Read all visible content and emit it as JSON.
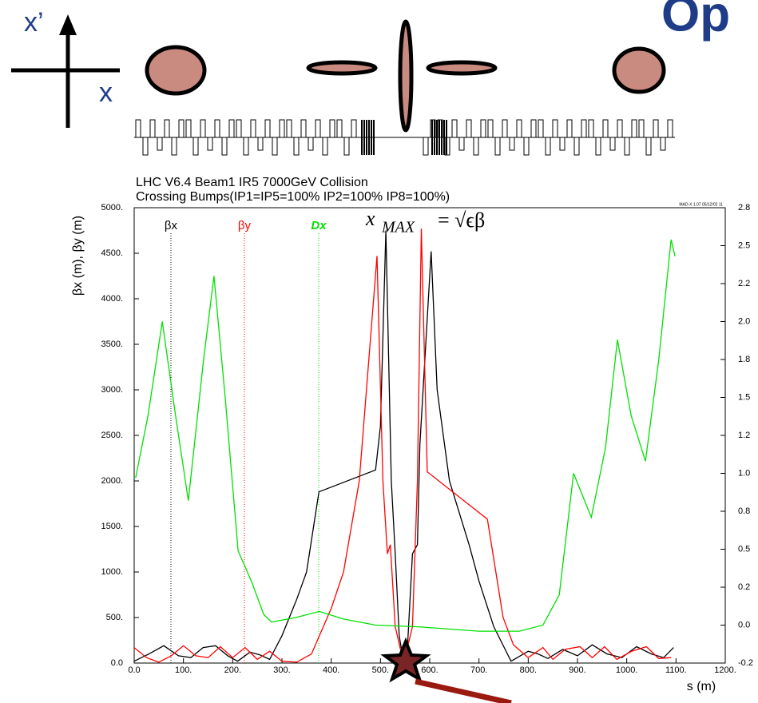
{
  "slide": {
    "heading": "Op",
    "axis_xp": "x’",
    "axis_x": "x"
  },
  "chart_data": {
    "type": "line",
    "title": "LHC V6.4 Beam1 IR5 7000GeV Collision",
    "subtitle": "Crossing Bumps(IP1=IP5=100% IP2=100% IP8=100%)",
    "stamp": "MAD-X 1.07  05/12/02 11",
    "formula": {
      "lhs": "x",
      "sub": "MAX",
      "rhs": "= √ϵβ"
    },
    "xlabel": "s (m)",
    "ylabel": "βx (m), βy (m)",
    "xlim": [
      0,
      1200
    ],
    "xticks": [
      {
        "value": 0,
        "label": "0.0"
      },
      {
        "value": 100,
        "label": "100."
      },
      {
        "value": 200,
        "label": "200."
      },
      {
        "value": 300,
        "label": "300."
      },
      {
        "value": 400,
        "label": "400."
      },
      {
        "value": 500,
        "label": "500."
      },
      {
        "value": 600,
        "label": "600."
      },
      {
        "value": 700,
        "label": "700."
      },
      {
        "value": 800,
        "label": "800."
      },
      {
        "value": 900,
        "label": "900."
      },
      {
        "value": 1000,
        "label": "1000."
      },
      {
        "value": 1100,
        "label": "1100."
      },
      {
        "value": 1200,
        "label": "1200."
      }
    ],
    "ylim": [
      0,
      5000
    ],
    "yticks": [
      {
        "value": 0,
        "label": "0.0"
      },
      {
        "value": 500,
        "label": "500."
      },
      {
        "value": 1000,
        "label": "1000."
      },
      {
        "value": 1500,
        "label": "1500."
      },
      {
        "value": 2000,
        "label": "2000."
      },
      {
        "value": 2500,
        "label": "2500."
      },
      {
        "value": 3000,
        "label": "3000."
      },
      {
        "value": 3500,
        "label": "3500."
      },
      {
        "value": 4000,
        "label": "4000."
      },
      {
        "value": 4500,
        "label": "4500."
      },
      {
        "value": 5000,
        "label": "5000."
      }
    ],
    "y2lim": [
      -0.25,
      2.75
    ],
    "y2ticks": [
      {
        "value": -0.25,
        "label": "-0.2"
      },
      {
        "value": 0,
        "label": "0.0"
      },
      {
        "value": 0.25,
        "label": "0.2"
      },
      {
        "value": 0.5,
        "label": "0.5"
      },
      {
        "value": 0.75,
        "label": "0.8"
      },
      {
        "value": 1,
        "label": "1.0"
      },
      {
        "value": 1.25,
        "label": "1.2"
      },
      {
        "value": 1.5,
        "label": "1.5"
      },
      {
        "value": 1.75,
        "label": "1.8"
      },
      {
        "value": 2,
        "label": "2.0"
      },
      {
        "value": 2.25,
        "label": "2.2"
      },
      {
        "value": 2.5,
        "label": "2.5"
      },
      {
        "value": 2.75,
        "label": "2.8"
      }
    ],
    "series": [
      {
        "name": "βx",
        "color": "#000000",
        "x": [
          0,
          30,
          60,
          90,
          115,
          140,
          165,
          190,
          210,
          235,
          255,
          275,
          300,
          330,
          350,
          375,
          490,
          500,
          511,
          522,
          530,
          538,
          547,
          555,
          565,
          575,
          580,
          603,
          615,
          640,
          680,
          700,
          730,
          765,
          800,
          820,
          840,
          870,
          900,
          930,
          960,
          990,
          1020,
          1050,
          1075,
          1095
        ],
        "values": [
          20,
          100,
          190,
          80,
          60,
          170,
          190,
          80,
          20,
          120,
          90,
          40,
          300,
          700,
          1000,
          1880,
          2120,
          2600,
          4750,
          2000,
          1200,
          300,
          10,
          200,
          1200,
          1300,
          2400,
          4520,
          3000,
          2000,
          1300,
          900,
          400,
          20,
          130,
          100,
          50,
          150,
          80,
          200,
          100,
          60,
          180,
          100,
          60,
          170
        ]
      },
      {
        "name": "βy",
        "color": "#ff0000",
        "x": [
          0,
          25,
          50,
          75,
          100,
          125,
          150,
          175,
          200,
          225,
          250,
          275,
          300,
          330,
          360,
          376,
          400,
          425,
          457,
          493,
          505,
          514,
          520,
          530,
          547,
          565,
          575,
          583,
          595,
          717,
          749,
          770,
          800,
          830,
          850,
          875,
          905,
          930,
          955,
          980,
          1010,
          1040,
          1065,
          1090
        ],
        "values": [
          170,
          60,
          10,
          80,
          190,
          80,
          60,
          180,
          60,
          170,
          40,
          130,
          20,
          10,
          100,
          300,
          600,
          1000,
          2000,
          4470,
          2000,
          1200,
          1300,
          400,
          0,
          400,
          2000,
          4770,
          2100,
          1580,
          500,
          200,
          60,
          170,
          40,
          150,
          180,
          60,
          180,
          40,
          130,
          180,
          50,
          60
        ]
      },
      {
        "name": "Dx",
        "color": "#00e000",
        "axis": "y2",
        "x": [
          3,
          28,
          57,
          84,
          110,
          141,
          162,
          185,
          211,
          239,
          263,
          279,
          328,
          376,
          425,
          490,
          571,
          700,
          782,
          830,
          863,
          892,
          928,
          957,
          981,
          1009,
          1038,
          1065,
          1090,
          1098
        ],
        "values": [
          0.97,
          1.38,
          2.0,
          1.38,
          0.82,
          1.75,
          2.3,
          1.49,
          0.49,
          0.28,
          0.07,
          0.02,
          0.05,
          0.09,
          0.04,
          0.0,
          -0.01,
          -0.04,
          -0.04,
          0.0,
          0.2,
          1.0,
          0.71,
          1.17,
          1.88,
          1.38,
          1.08,
          1.75,
          2.54,
          2.43
        ]
      }
    ]
  }
}
